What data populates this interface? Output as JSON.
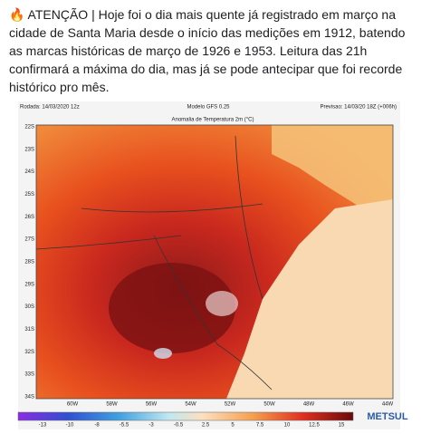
{
  "post": {
    "text": "🔥 ATENÇÃO | Hoje foi o dia mais quente já registrado em março na cidade de Santa Maria desde o início das medições em 1912, batendo as marcas históricas de março de 1926 e 1953. Leitura das 21h confirmará a máxima do dia, mas já se pode antecipar que foi recorde histórico pro mês."
  },
  "map": {
    "run": "Rodada: 14/03/2020 12z",
    "model": "Modelo GFS 0.25",
    "forecast": "Previsao: 14/03/20 18Z (+006h)",
    "title": "Anomalia de Temperatura 2m (°C)",
    "lat_labels": [
      "22S",
      "23S",
      "24S",
      "25S",
      "26S",
      "27S",
      "28S",
      "29S",
      "30S",
      "31S",
      "32S",
      "33S",
      "34S"
    ],
    "lon_labels": [
      "60W",
      "58W",
      "56W",
      "54W",
      "52W",
      "50W",
      "48W",
      "46W",
      "44W"
    ],
    "colorbar_labels": [
      "-13",
      "-10",
      "-8",
      "-5.5",
      "-3",
      "-0.5",
      "2.5",
      "5",
      "7.5",
      "10",
      "12.5",
      "15"
    ],
    "logo": "METSUL"
  }
}
